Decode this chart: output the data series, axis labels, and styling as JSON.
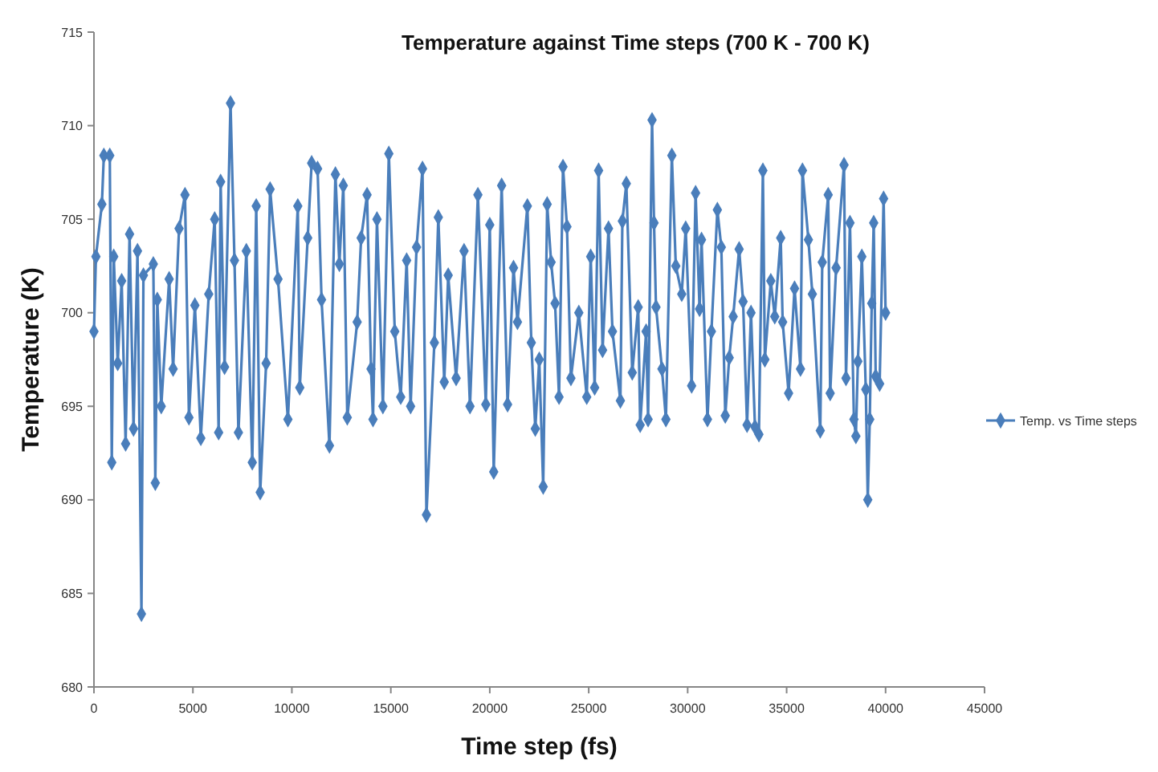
{
  "chart_data": {
    "type": "line",
    "title": "Temperature against Time steps (700 K - 700  K)",
    "xlabel": "Time step (fs)",
    "ylabel": "Temperature (K)",
    "xlim": [
      0,
      45000
    ],
    "xticks": [
      0,
      5000,
      10000,
      15000,
      20000,
      25000,
      30000,
      35000,
      40000,
      45000
    ],
    "ylim": [
      680,
      715
    ],
    "yticks": [
      680,
      685,
      690,
      695,
      700,
      705,
      710,
      715
    ],
    "grid": false,
    "legend": "right",
    "marker": "diamond",
    "line_style": "solid",
    "series": [
      {
        "name": "Temp. vs Time steps",
        "color": "#4a7ebb",
        "x": [
          0,
          100,
          400,
          500,
          800,
          900,
          1000,
          1200,
          1400,
          1600,
          1800,
          2000,
          2200,
          2400,
          2500,
          3000,
          3100,
          3200,
          3400,
          3800,
          4000,
          4300,
          4600,
          4800,
          5100,
          5400,
          5800,
          6100,
          6300,
          6400,
          6600,
          6900,
          7100,
          7300,
          7700,
          8000,
          8200,
          8400,
          8700,
          8900,
          9300,
          9800,
          10300,
          10400,
          10800,
          11000,
          11300,
          11500,
          11900,
          12200,
          12400,
          12600,
          12800,
          13300,
          13500,
          13800,
          14000,
          14100,
          14300,
          14600,
          14900,
          15200,
          15500,
          15800,
          16000,
          16300,
          16600,
          16800,
          17200,
          17400,
          17700,
          17900,
          18300,
          18700,
          19000,
          19400,
          19800,
          20000,
          20200,
          20600,
          20900,
          21200,
          21400,
          21900,
          22100,
          22300,
          22500,
          22700,
          22900,
          23100,
          23300,
          23500,
          23700,
          23900,
          24100,
          24500,
          24900,
          25100,
          25300,
          25500,
          25700,
          26000,
          26200,
          26600,
          26700,
          26900,
          27200,
          27500,
          27600,
          27900,
          28000,
          28200,
          28300,
          28400,
          28700,
          28900,
          29200,
          29400,
          29700,
          29900,
          30200,
          30400,
          30600,
          30700,
          31000,
          31200,
          31500,
          31700,
          31900,
          32100,
          32300,
          32600,
          32800,
          33000,
          33200,
          33400,
          33600,
          33800,
          33900,
          34200,
          34400,
          34700,
          34800,
          35100,
          35400,
          35700,
          35800,
          36100,
          36300,
          36700,
          36800,
          37100,
          37200,
          37500,
          37900,
          38000,
          38200,
          38400,
          38500,
          38600,
          38800,
          39000,
          39100,
          39200,
          39300,
          39400,
          39500,
          39700,
          39900,
          40000
        ],
        "values": [
          699,
          703,
          705.8,
          708.4,
          708.4,
          692,
          703,
          697.3,
          701.7,
          693,
          704.2,
          693.8,
          703.3,
          683.9,
          702,
          702.6,
          690.9,
          700.7,
          695,
          701.8,
          697,
          704.5,
          706.3,
          694.4,
          700.4,
          693.3,
          701,
          705,
          693.6,
          707,
          697.1,
          711.2,
          702.8,
          693.6,
          703.3,
          692,
          705.7,
          690.4,
          697.3,
          706.6,
          701.8,
          694.3,
          705.7,
          696,
          704,
          708,
          707.7,
          700.7,
          692.9,
          707.4,
          702.6,
          706.8,
          694.4,
          699.5,
          704,
          706.3,
          697,
          694.3,
          705,
          695,
          708.5,
          699,
          695.5,
          702.8,
          695,
          703.5,
          707.7,
          689.2,
          698.4,
          705.1,
          696.3,
          702,
          696.5,
          703.3,
          695,
          706.3,
          695.1,
          704.7,
          691.5,
          706.8,
          695.1,
          702.4,
          699.5,
          705.7,
          698.4,
          693.8,
          697.5,
          690.7,
          705.8,
          702.7,
          700.5,
          695.5,
          707.8,
          704.6,
          696.5,
          700,
          695.5,
          703,
          696,
          707.6,
          698,
          704.5,
          699,
          695.3,
          704.9,
          706.9,
          696.8,
          700.3,
          694,
          699,
          694.3,
          710.3,
          704.8,
          700.3,
          697,
          694.3,
          708.4,
          702.5,
          701,
          704.5,
          696.1,
          706.4,
          700.2,
          703.9,
          694.3,
          699,
          705.5,
          703.5,
          694.5,
          697.6,
          699.8,
          703.4,
          700.6,
          694,
          700,
          693.9,
          693.5,
          707.6,
          697.5,
          701.7,
          699.8,
          704,
          699.5,
          695.7,
          701.3,
          697,
          707.6,
          703.9,
          701,
          693.7,
          702.7,
          706.3,
          695.7,
          702.4,
          707.9,
          696.5,
          704.8,
          694.3,
          693.4,
          697.4,
          703,
          695.9,
          690,
          694.3,
          700.5,
          704.8,
          696.6,
          696.2,
          706.1,
          700
        ]
      }
    ]
  }
}
